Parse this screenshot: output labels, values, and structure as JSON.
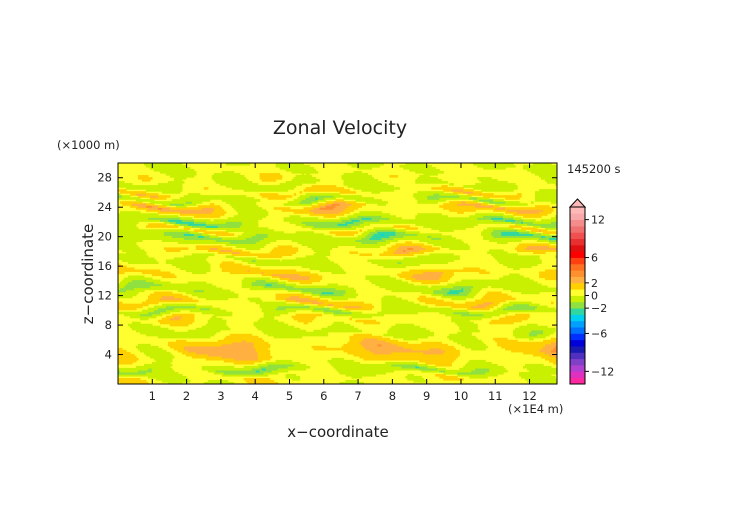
{
  "chart_data": {
    "type": "heatmap",
    "title": "Zonal Velocity",
    "xlabel": "x−coordinate",
    "ylabel": "z−coordinate",
    "x_unit": "(×1E4 m)",
    "y_unit": "(×1000 m)",
    "time_label": "145200 s",
    "xlim": [
      0,
      12.8
    ],
    "ylim": [
      0,
      30
    ],
    "x_ticks": [
      1,
      2,
      3,
      4,
      5,
      6,
      7,
      8,
      9,
      10,
      11,
      12
    ],
    "y_ticks": [
      4,
      8,
      12,
      16,
      20,
      24,
      28
    ],
    "colorbar": {
      "levels": [
        -14,
        -13,
        -12,
        -11,
        -10,
        -9,
        -8,
        -7,
        -6,
        -5,
        -4,
        -3,
        -2,
        -1,
        0,
        1,
        2,
        3,
        4,
        5,
        6,
        7,
        8,
        9,
        10,
        11,
        12,
        13,
        14
      ],
      "colors": [
        "#ff2aa0",
        "#e030c0",
        "#b040d0",
        "#8040c8",
        "#5030c0",
        "#1a1ab0",
        "#0000d8",
        "#0030ff",
        "#0070ff",
        "#00a0ff",
        "#00d0f0",
        "#30d8a0",
        "#90e040",
        "#c8f000",
        "#ffff30",
        "#ffd000",
        "#ffb040",
        "#ff9030",
        "#ff7020",
        "#ff4010",
        "#ff0000",
        "#e01010",
        "#e83030",
        "#f05050",
        "#f07070",
        "#f48c8c",
        "#f8a8a8",
        "#ffb8b8"
      ],
      "tick_labels": [
        "12",
        "6",
        "2",
        "0",
        "−2",
        "−6",
        "−12"
      ],
      "tick_values": [
        12,
        6,
        2,
        0,
        -2,
        -6,
        -12
      ]
    },
    "bands": [
      {
        "z": 1.2,
        "u": 0.8
      },
      {
        "z": 2.0,
        "u": -2.2
      },
      {
        "z": 3.0,
        "u": 1.2
      },
      {
        "z": 4.2,
        "u": 2.6
      },
      {
        "z": 5.0,
        "u": 3.0
      },
      {
        "z": 6.0,
        "u": 1.4
      },
      {
        "z": 7.0,
        "u": -0.6
      },
      {
        "z": 8.0,
        "u": 0.4
      },
      {
        "z": 9.0,
        "u": 1.6
      },
      {
        "z": 10.0,
        "u": -1.6
      },
      {
        "z": 11.0,
        "u": 2.2
      },
      {
        "z": 12.0,
        "u": 0.6
      },
      {
        "z": 13.0,
        "u": -1.8
      },
      {
        "z": 14.0,
        "u": 0.6
      },
      {
        "z": 15.0,
        "u": 2.4
      },
      {
        "z": 16.0,
        "u": 0.4
      },
      {
        "z": 17.0,
        "u": -0.8
      },
      {
        "z": 18.0,
        "u": 2.6
      },
      {
        "z": 19.0,
        "u": 0.2
      },
      {
        "z": 20.0,
        "u": -2.4
      },
      {
        "z": 21.0,
        "u": 1.4
      },
      {
        "z": 22.0,
        "u": -2.6
      },
      {
        "z": 23.0,
        "u": 0.8
      },
      {
        "z": 24.0,
        "u": 3.2
      },
      {
        "z": 25.0,
        "u": -1.6
      },
      {
        "z": 26.0,
        "u": 1.8
      },
      {
        "z": 27.0,
        "u": -0.6
      },
      {
        "z": 28.0,
        "u": 0.8
      },
      {
        "z": 29.0,
        "u": 0.2
      }
    ]
  }
}
